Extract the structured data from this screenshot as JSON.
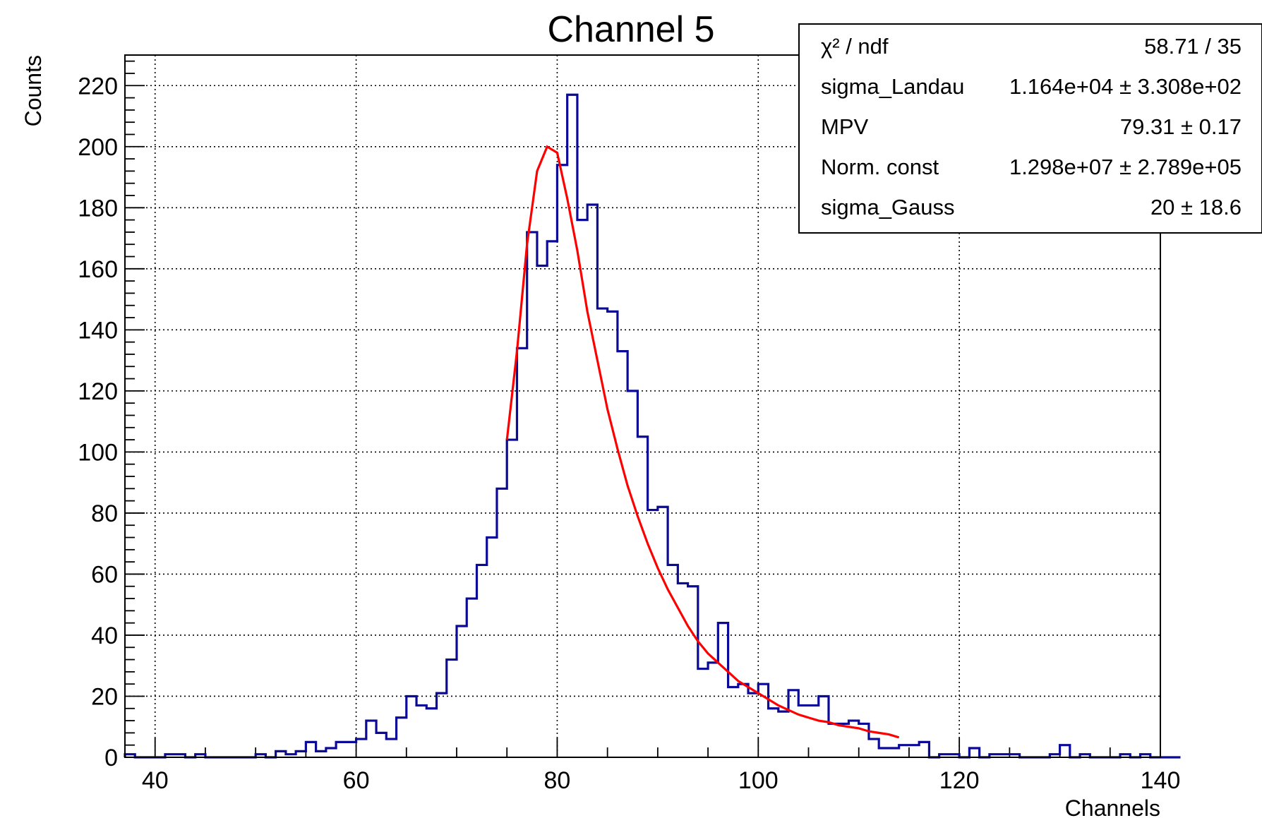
{
  "chart_data": {
    "type": "histogram",
    "title": "Channel 5",
    "xlabel": "Channels",
    "ylabel": "Counts",
    "xlim": [
      37,
      140
    ],
    "ylim": [
      0,
      230
    ],
    "x_ticks": [
      40,
      60,
      80,
      100,
      120,
      140
    ],
    "y_ticks": [
      0,
      20,
      40,
      60,
      80,
      100,
      120,
      140,
      160,
      180,
      200,
      220
    ],
    "grid": true,
    "histogram": {
      "color": "#0a0a96",
      "bin_start": 37,
      "bin_width": 1,
      "values": [
        1,
        0,
        0,
        0,
        1,
        1,
        0,
        1,
        0,
        0,
        0,
        0,
        0,
        1,
        0,
        2,
        1,
        2,
        5,
        2,
        3,
        5,
        5,
        6,
        12,
        8,
        6,
        13,
        20,
        17,
        16,
        21,
        32,
        43,
        52,
        63,
        72,
        88,
        104,
        134,
        172,
        161,
        169,
        194,
        217,
        176,
        181,
        147,
        146,
        133,
        120,
        105,
        81,
        82,
        63,
        57,
        56,
        29,
        31,
        44,
        23,
        24,
        21,
        24,
        16,
        15,
        22,
        17,
        17,
        20,
        11,
        11,
        12,
        11,
        6,
        3,
        3,
        4,
        4,
        5,
        0,
        1,
        1,
        0,
        3,
        0,
        1,
        1,
        1,
        0,
        0,
        0,
        1,
        4,
        0,
        1,
        0,
        0,
        0,
        1,
        0,
        1,
        0,
        0,
        0
      ]
    },
    "fit": {
      "color": "#ff0000",
      "x": [
        75,
        76,
        77,
        78,
        79,
        80,
        81,
        82,
        83,
        84,
        85,
        86,
        87,
        88,
        89,
        90,
        91,
        92,
        93,
        94,
        95,
        96,
        97,
        98,
        99,
        100,
        101,
        102,
        103,
        104,
        105,
        106,
        107,
        108,
        109,
        110,
        111,
        112,
        113,
        114
      ],
      "y": [
        104,
        133,
        168,
        192,
        200,
        198,
        183,
        166,
        146,
        130,
        114,
        101,
        89,
        79,
        70,
        62,
        55,
        49,
        43,
        38,
        34,
        31,
        28,
        25,
        23,
        21,
        19,
        17,
        15.5,
        14,
        13,
        12,
        11.5,
        10.5,
        10,
        9.5,
        8.5,
        8,
        7.5,
        6.5
      ]
    },
    "stats_box": [
      {
        "label": "χ² / ndf",
        "value": "58.71 / 35"
      },
      {
        "label": "sigma_Landau",
        "value": "1.164e+04 ± 3.308e+02"
      },
      {
        "label": "MPV",
        "value": "79.31 ± 0.17"
      },
      {
        "label": "Norm. const",
        "value": "1.298e+07 ± 2.789e+05"
      },
      {
        "label": "sigma_Gauss",
        "value": "20 ± 18.6"
      }
    ]
  }
}
